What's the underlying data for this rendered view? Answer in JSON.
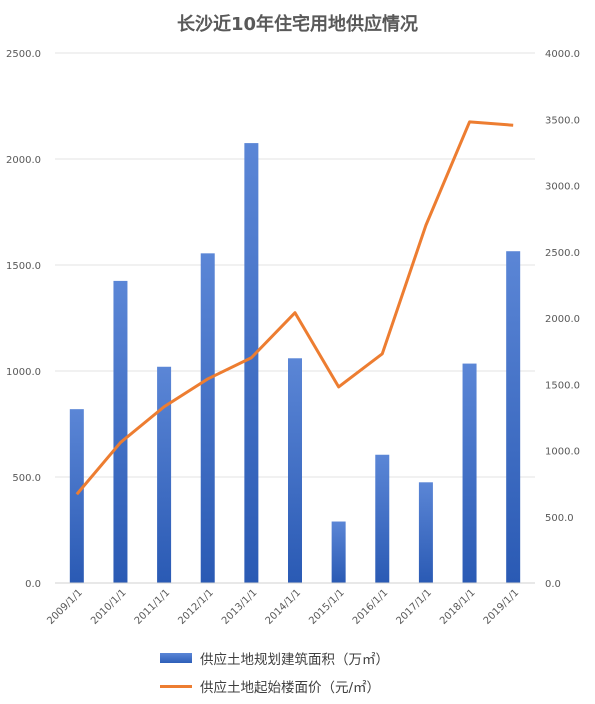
{
  "chart_data": {
    "type": "bar+line",
    "title": "长沙近10年住宅用地供应情况",
    "categories": [
      "2009/1/1",
      "2010/1/1",
      "2011/1/1",
      "2012/1/1",
      "2013/1/1",
      "2014/1/1",
      "2015/1/1",
      "2016/1/1",
      "2017/1/1",
      "2018/1/1",
      "2019/1/1"
    ],
    "series": [
      {
        "name": "供应土地规划建筑面积（万㎡）",
        "type": "bar",
        "axis": "left",
        "color": "#3a6cc6",
        "values": [
          820,
          1425,
          1020,
          1555,
          2075,
          1060,
          290,
          605,
          475,
          1035,
          1565
        ]
      },
      {
        "name": "供应土地起始楼面价（元/㎡）",
        "type": "line",
        "axis": "right",
        "color": "#ed7d31",
        "values": [
          670,
          1060,
          1330,
          1540,
          1700,
          2040,
          1480,
          1730,
          2700,
          3480,
          3455
        ]
      }
    ],
    "y_left": {
      "min": 0,
      "max": 2500,
      "ticks": [
        "0.0",
        "500.0",
        "1000.0",
        "1500.0",
        "2000.0",
        "2500.0"
      ]
    },
    "y_right": {
      "min": 0,
      "max": 4000,
      "ticks": [
        "0.0",
        "500.0",
        "1000.0",
        "1500.0",
        "2000.0",
        "2500.0",
        "3000.0",
        "3500.0",
        "4000.0"
      ]
    },
    "grid": true,
    "legend_position": "bottom"
  }
}
